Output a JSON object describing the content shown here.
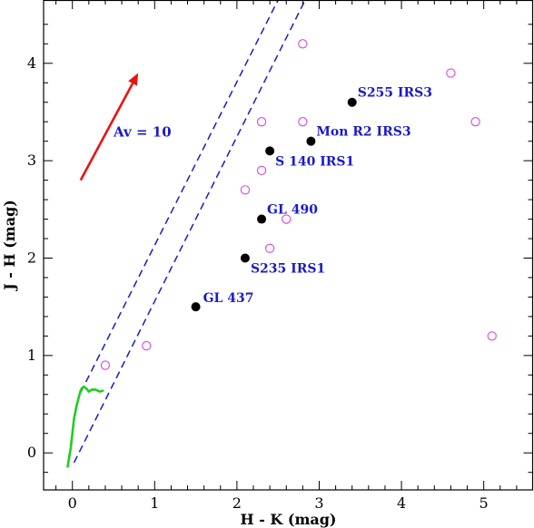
{
  "chart_data": {
    "type": "scatter",
    "xlabel": "H - K (mag)",
    "ylabel": "J - H (mag)",
    "xlim": [
      -0.35,
      5.6
    ],
    "ylim": [
      -0.38,
      4.65
    ],
    "x_ticks": [
      0,
      1,
      2,
      3,
      4,
      5
    ],
    "y_ticks": [
      0,
      1,
      2,
      3,
      4
    ],
    "grid": false,
    "colors": {
      "filled": "#000000",
      "open": "#dd44dd",
      "labels": "#1a1acc",
      "reddening_lines": "#1a1acc",
      "arrow": "#ee1111",
      "main_sequence": "#22cc22"
    },
    "filled_points": [
      {
        "name": "S255 IRS3",
        "x": 3.4,
        "y": 3.6
      },
      {
        "name": "Mon R2 IRS3",
        "x": 2.9,
        "y": 3.2
      },
      {
        "name": "S 140 IRS1",
        "x": 2.4,
        "y": 3.1
      },
      {
        "name": "GL 490",
        "x": 2.3,
        "y": 2.4
      },
      {
        "name": "S235 IRS1",
        "x": 2.1,
        "y": 2.0
      },
      {
        "name": "GL 437",
        "x": 1.5,
        "y": 1.5
      }
    ],
    "open_points": [
      {
        "x": 2.8,
        "y": 4.2
      },
      {
        "x": 4.6,
        "y": 3.9
      },
      {
        "x": 2.3,
        "y": 3.4
      },
      {
        "x": 2.8,
        "y": 3.4
      },
      {
        "x": 4.9,
        "y": 3.4
      },
      {
        "x": 2.3,
        "y": 2.9
      },
      {
        "x": 2.1,
        "y": 2.7
      },
      {
        "x": 2.6,
        "y": 2.4
      },
      {
        "x": 2.4,
        "y": 2.1
      },
      {
        "x": 5.1,
        "y": 1.2
      },
      {
        "x": 0.9,
        "y": 1.1
      },
      {
        "x": 0.4,
        "y": 0.9
      }
    ],
    "reddening_lines": [
      {
        "x": [
          0.1,
          2.5
        ],
        "y": [
          0.62,
          4.65
        ]
      },
      {
        "x": [
          0.02,
          2.83
        ],
        "y": [
          -0.1,
          4.65
        ]
      }
    ],
    "reddening_vector": {
      "label": "Av = 10",
      "x": [
        0.1,
        0.8
      ],
      "y": [
        2.8,
        3.9
      ]
    },
    "main_sequence": {
      "x": [
        -0.06,
        -0.04,
        -0.02,
        0.0,
        0.02,
        0.05,
        0.08,
        0.1,
        0.12,
        0.14,
        0.17,
        0.2,
        0.24,
        0.28,
        0.33,
        0.38
      ],
      "y": [
        -0.15,
        -0.05,
        0.05,
        0.2,
        0.35,
        0.48,
        0.58,
        0.64,
        0.67,
        0.68,
        0.66,
        0.63,
        0.65,
        0.65,
        0.63,
        0.64
      ]
    }
  }
}
